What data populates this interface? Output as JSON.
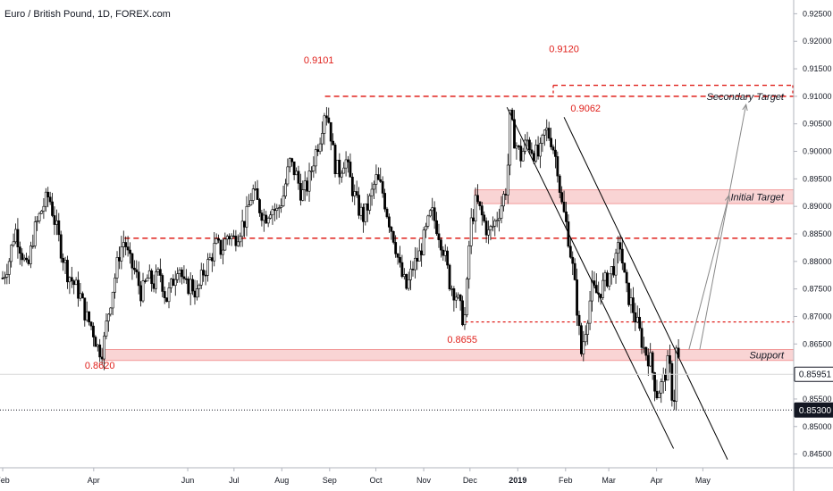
{
  "chart_data": {
    "type": "candlestick",
    "title": "Euro / British Pound, 1D, FOREX.com",
    "colors": {
      "candle": "#000000",
      "level": "#e0201b",
      "zone_fill": "#f7c6c6",
      "zone_edge": "#f08a8a",
      "arrow": "#888888",
      "grid_axis": "#dddddd"
    },
    "x_ticks": [
      {
        "label": "Feb",
        "day": 0
      },
      {
        "label": "Apr",
        "day": 59
      },
      {
        "label": "Jun",
        "day": 120
      },
      {
        "label": "Jul",
        "day": 150
      },
      {
        "label": "Aug",
        "day": 181
      },
      {
        "label": "Sep",
        "day": 212
      },
      {
        "label": "Oct",
        "day": 242
      },
      {
        "label": "Nov",
        "day": 273
      },
      {
        "label": "Dec",
        "day": 303
      },
      {
        "label": "2019",
        "day": 334,
        "bold": true
      },
      {
        "label": "Feb",
        "day": 365
      },
      {
        "label": "Mar",
        "day": 393
      },
      {
        "label": "Apr",
        "day": 424
      },
      {
        "label": "May",
        "day": 454
      }
    ],
    "y_ticks": [
      0.845,
      0.85,
      0.855,
      0.86,
      0.865,
      0.87,
      0.875,
      0.88,
      0.885,
      0.89,
      0.895,
      0.9,
      0.905,
      0.91,
      0.915,
      0.92,
      0.925
    ],
    "y_tick_labels": [
      "0.84500",
      "0.85000",
      "0.85500",
      "0.86000",
      "0.86500",
      "0.87000",
      "0.87500",
      "0.88000",
      "0.88500",
      "0.89000",
      "0.89500",
      "0.90000",
      "0.90500",
      "0.91000",
      "0.91500",
      "0.92000",
      "0.92500"
    ],
    "ylim": [
      0.8425,
      0.9275
    ],
    "xlim_days": [
      0,
      510
    ],
    "series": [
      {
        "anchors": [
          [
            0,
            0.877
          ],
          [
            4,
            0.88
          ],
          [
            8,
            0.886
          ],
          [
            12,
            0.882
          ],
          [
            16,
            0.878
          ],
          [
            20,
            0.885
          ],
          [
            26,
            0.89
          ],
          [
            30,
            0.892
          ],
          [
            34,
            0.887
          ],
          [
            38,
            0.882
          ],
          [
            42,
            0.878
          ],
          [
            46,
            0.876
          ],
          [
            50,
            0.874
          ],
          [
            54,
            0.87
          ],
          [
            58,
            0.868
          ],
          [
            62,
            0.864
          ],
          [
            65,
            0.864
          ],
          [
            68,
            0.87
          ],
          [
            72,
            0.876
          ],
          [
            76,
            0.882
          ],
          [
            79,
            0.884
          ],
          [
            82,
            0.88
          ],
          [
            86,
            0.878
          ],
          [
            90,
            0.874
          ],
          [
            94,
            0.877
          ],
          [
            98,
            0.876
          ],
          [
            102,
            0.878
          ],
          [
            106,
            0.873
          ],
          [
            110,
            0.876
          ],
          [
            114,
            0.88
          ],
          [
            118,
            0.875
          ],
          [
            122,
            0.876
          ],
          [
            126,
            0.874
          ],
          [
            130,
            0.878
          ],
          [
            134,
            0.88
          ],
          [
            138,
            0.883
          ],
          [
            142,
            0.882
          ],
          [
            146,
            0.885
          ],
          [
            150,
            0.884
          ],
          [
            154,
            0.886
          ],
          [
            158,
            0.888
          ],
          [
            162,
            0.893
          ],
          [
            166,
            0.89
          ],
          [
            170,
            0.888
          ],
          [
            174,
            0.89
          ],
          [
            178,
            0.889
          ],
          [
            182,
            0.892
          ],
          [
            186,
            0.898
          ],
          [
            190,
            0.896
          ],
          [
            194,
            0.892
          ],
          [
            198,
            0.894
          ],
          [
            202,
            0.899
          ],
          [
            206,
            0.903
          ],
          [
            209,
            0.908
          ],
          [
            212,
            0.905
          ],
          [
            215,
            0.898
          ],
          [
            218,
            0.896
          ],
          [
            222,
            0.899
          ],
          [
            226,
            0.894
          ],
          [
            230,
            0.89
          ],
          [
            234,
            0.888
          ],
          [
            238,
            0.891
          ],
          [
            242,
            0.895
          ],
          [
            246,
            0.893
          ],
          [
            250,
            0.888
          ],
          [
            254,
            0.884
          ],
          [
            258,
            0.878
          ],
          [
            262,
            0.875
          ],
          [
            266,
            0.879
          ],
          [
            270,
            0.881
          ],
          [
            274,
            0.885
          ],
          [
            278,
            0.889
          ],
          [
            282,
            0.886
          ],
          [
            286,
            0.882
          ],
          [
            290,
            0.876
          ],
          [
            294,
            0.874
          ],
          [
            298,
            0.87
          ],
          [
            300,
            0.87
          ],
          [
            303,
            0.886
          ],
          [
            307,
            0.891
          ],
          [
            311,
            0.888
          ],
          [
            315,
            0.885
          ],
          [
            319,
            0.887
          ],
          [
            323,
            0.89
          ],
          [
            327,
            0.894
          ],
          [
            329,
            0.906
          ],
          [
            332,
            0.902
          ],
          [
            336,
            0.899
          ],
          [
            340,
            0.902
          ],
          [
            344,
            0.9
          ],
          [
            348,
            0.899
          ],
          [
            352,
            0.904
          ],
          [
            356,
            0.902
          ],
          [
            360,
            0.897
          ],
          [
            362,
            0.891
          ],
          [
            366,
            0.886
          ],
          [
            370,
            0.878
          ],
          [
            373,
            0.87
          ],
          [
            375,
            0.863
          ],
          [
            378,
            0.868
          ],
          [
            382,
            0.875
          ],
          [
            386,
            0.874
          ],
          [
            390,
            0.876
          ],
          [
            394,
            0.878
          ],
          [
            398,
            0.88
          ],
          [
            400,
            0.884
          ],
          [
            404,
            0.875
          ],
          [
            408,
            0.872
          ],
          [
            412,
            0.868
          ],
          [
            416,
            0.864
          ],
          [
            420,
            0.862
          ],
          [
            424,
            0.856
          ],
          [
            428,
            0.858
          ],
          [
            432,
            0.862
          ],
          [
            435,
            0.853
          ],
          [
            437,
            0.865
          ],
          [
            439,
            0.86
          ]
        ]
      }
    ],
    "levels": {
      "resistance_9101": {
        "value": 0.91,
        "label": "0.9101",
        "from_day": 209
      },
      "resistance_9120": {
        "value": 0.912,
        "label": "0.9120",
        "from_day": 357
      },
      "resistance_9062": {
        "value": 0.9062,
        "label": "0.9062"
      },
      "level_8842": {
        "value": 0.8842,
        "from_day": 79
      },
      "level_8690": {
        "value": 0.869,
        "from_day": 300
      },
      "label_8620": {
        "value": 0.862,
        "label": "0.8620"
      },
      "label_8655": {
        "value": 0.8655,
        "label": "0.8655"
      }
    },
    "zones": [
      {
        "name": "Secondary Target",
        "low": 0.91,
        "high": 0.912,
        "from_day": 357,
        "label": "Secondary Target",
        "dashed": true
      },
      {
        "name": "Initial Target",
        "low": 0.8905,
        "high": 0.893,
        "from_day": 306,
        "label": "Initial Target"
      },
      {
        "name": "Support",
        "low": 0.862,
        "high": 0.864,
        "from_day": 65,
        "label": "Support"
      }
    ],
    "channel": {
      "upper": [
        [
          364,
          0.9062
        ],
        [
          470,
          0.844
        ]
      ],
      "lower": [
        [
          327,
          0.908
        ],
        [
          435,
          0.846
        ]
      ]
    },
    "arrows": [
      {
        "from": [
          445,
          0.864
        ],
        "to": [
          471,
          0.892
        ]
      },
      {
        "from": [
          452,
          0.864
        ],
        "to": [
          482,
          0.9085
        ]
      }
    ],
    "reference_lines": [
      {
        "value": 0.8595,
        "style": "solid-light"
      },
      {
        "value": 0.853,
        "style": "dotted-dark"
      }
    ],
    "price_tags": [
      {
        "value": 0.8595,
        "label": "0.85951",
        "kind": "light"
      },
      {
        "value": 0.853,
        "label": "0.85300",
        "kind": "dark"
      }
    ]
  }
}
